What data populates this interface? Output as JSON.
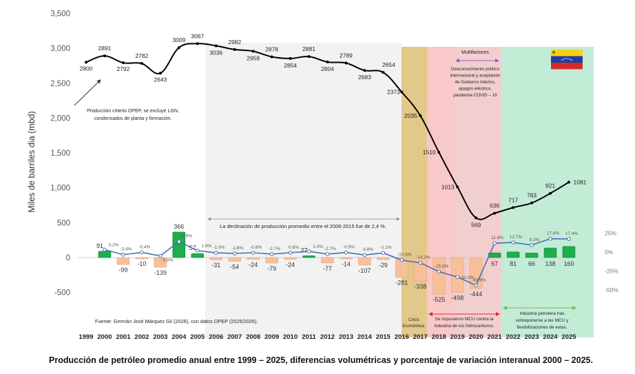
{
  "chart_data": {
    "type": "line",
    "title": "Producción de petróleo promedio anual entre 1999 – 2025, diferencias volumétricas y porcentaje de variación interanual 2000 – 2025.",
    "ylabel": "Miles de barriles dia (mbd)",
    "xlabel": "",
    "ylim": [
      -500,
      3500
    ],
    "y_ticks": [
      "3,500",
      "3,000",
      "2,500",
      "2,000",
      "1,500",
      "1,000",
      "500",
      "0",
      "-500"
    ],
    "y_tick_values": [
      3500,
      3000,
      2500,
      2000,
      1500,
      1000,
      500,
      0,
      -500
    ],
    "y2_ticks": [
      "25%",
      "0%",
      "-25%",
      "-50%"
    ],
    "y2_tick_values": [
      25,
      0,
      -25,
      -50
    ],
    "grid": false,
    "categories": [
      "1999",
      "2000",
      "2001",
      "2002",
      "2003",
      "2004",
      "2005",
      "2006",
      "2007",
      "2008",
      "2009",
      "2010",
      "2011",
      "2012",
      "2013",
      "2014",
      "2015",
      "2016",
      "2017",
      "2018",
      "2019",
      "2020",
      "2021",
      "2022",
      "2023",
      "2024",
      "2025"
    ],
    "series": [
      {
        "kind": "line",
        "axis": "left",
        "color": "#000000",
        "values": [
          2800,
          2891,
          2792,
          2782,
          2643,
          3009,
          3067,
          3036,
          2982,
          2958,
          2878,
          2854,
          2881,
          2804,
          2789,
          2683,
          2654,
          2373,
          2035,
          1510,
          1013,
          569,
          636,
          717,
          783,
          921,
          1081
        ]
      },
      {
        "kind": "bar",
        "axis": "left",
        "positive_color": "#1fae4b",
        "negative_color": "#f8c09a",
        "values": [
          null,
          91,
          -99,
          -10,
          -139,
          366,
          57,
          -31,
          -54,
          -24,
          -79,
          -24,
          27,
          -77,
          -14,
          -107,
          -29,
          -281,
          -338,
          -525,
          -498,
          -444,
          67,
          81,
          66,
          138,
          160
        ]
      },
      {
        "kind": "line",
        "axis": "right",
        "color": "#4a6fb5",
        "unit": "%",
        "values": [
          null,
          3.2,
          -3.4,
          -0.4,
          -5.0,
          13.9,
          1.9,
          -1.0,
          -1.8,
          -0.8,
          -2.7,
          -0.8,
          1.0,
          -2.7,
          -0.5,
          -3.8,
          -1.1,
          -10.6,
          -14.2,
          -25.8,
          -32.9,
          -43.9,
          11.8,
          12.7,
          9.2,
          17.6,
          17.4
        ],
        "labels": [
          "",
          "3.2%",
          "-3.4%",
          "-0.4%",
          "-5.0%",
          "13.9%",
          "1.9%",
          "-1.0%",
          "-1.8%",
          "-0.8%",
          "-2.7%",
          "-0.8%",
          "1.0%",
          "-2.7%",
          "-0.5%",
          "-3.8%",
          "-1.1%",
          "-10.6%",
          "-14.2%",
          "-25.8%",
          "-32.9%",
          "-43.9%",
          "11.8%",
          "12.7%",
          "9.2%",
          "17.6%",
          "17.4%"
        ]
      }
    ],
    "regions": [
      {
        "from": "2005",
        "to": "2016",
        "color": "#f2f2f2"
      },
      {
        "from": "2016",
        "to": "2017",
        "color": "#e2c98a"
      },
      {
        "from": "2017",
        "to": "2019",
        "color": "#f9c8c8"
      },
      {
        "from": "2019",
        "to": "2021",
        "color": "#f2cfcf"
      },
      {
        "from": "2021",
        "to": "2025",
        "color": "#c3ecd6"
      }
    ],
    "annotations": {
      "opep_note": [
        "Producción criterio OPEP, se excluye LGN,",
        "condensados de planta y formación."
      ],
      "decline_note": "La declinación de producción promedio entre el 2006-2015 fue de 2,4 %.",
      "multifactores": "Multifactores",
      "multifactores_detail": [
        "Desconocimiento político",
        "internacional  y aceptación",
        "de Gobierno Interino,",
        "apagón eléctrico,",
        "pandemia COVID – 19"
      ],
      "crisis": [
        "Crisis",
        "Económica."
      ],
      "mcu": [
        "Se impusieron MCU contra la",
        "industria de los hidrocarburos."
      ],
      "recovery": [
        "Industria petrolera tras",
        "sobreponerse a las MCU y",
        "flexibilizaciones de estas."
      ],
      "source": "Fuente: Germán José Márquez Gil (2026), con datos OPEP (2025/2026)."
    },
    "flag": "venezuela-flag"
  }
}
